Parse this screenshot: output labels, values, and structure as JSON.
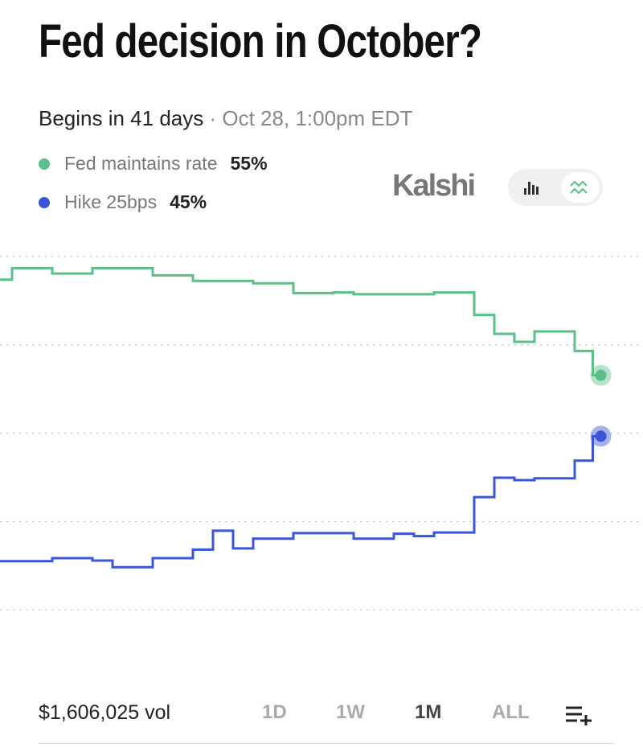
{
  "header": {
    "title": "Fed decision in October?",
    "begins": "Begins in 41 days",
    "separator": "·",
    "date": "Oct 28, 1:00pm EDT",
    "brand": "Kalshi"
  },
  "chart_data": {
    "type": "line",
    "step": true,
    "grid": true,
    "x": [
      0,
      0.6,
      2.6,
      4.6,
      5.6,
      7.6,
      9.6,
      10.6,
      11.6,
      12.6,
      14.6,
      16.6,
      17.6,
      19.6,
      20.6,
      21.6,
      23.6,
      24.6,
      25.6,
      26.6,
      28.6,
      29.5,
      29.9
    ],
    "xlim": [
      0,
      30
    ],
    "ylim": [
      11,
      77
    ],
    "yticks": [
      74.5,
      60,
      45.5,
      31,
      16.5
    ],
    "series": [
      {
        "name": "Fed maintains rate",
        "color": "#5cbf8a",
        "chance_label": "55%",
        "values": [
          70.7,
          72.6,
          71.7,
          72.6,
          72.6,
          71.4,
          70.5,
          70.5,
          70.5,
          70.1,
          68.5,
          68.6,
          68.3,
          68.3,
          68.3,
          68.6,
          64.9,
          61.8,
          60.5,
          62.2,
          59.0,
          55,
          55
        ]
      },
      {
        "name": "Hike 25bps",
        "color": "#3a55d8",
        "chance_label": "45%",
        "values": [
          24.5,
          24.5,
          25.0,
          24.6,
          23.5,
          25.0,
          26.4,
          29.5,
          26.6,
          28.2,
          29.1,
          29.1,
          28.2,
          29.0,
          28.6,
          29.2,
          35.0,
          38.2,
          37.8,
          38.1,
          41.0,
          45,
          45
        ]
      }
    ]
  },
  "footer": {
    "volume": "$1,606,025 vol",
    "ranges": [
      "1D",
      "1W",
      "1M",
      "ALL"
    ]
  }
}
